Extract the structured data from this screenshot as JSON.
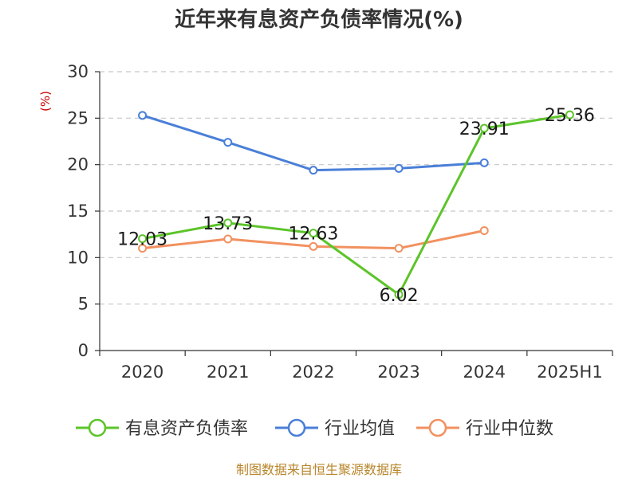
{
  "chart_data": {
    "type": "line",
    "title": "近年来有息资产负债率情况(%)",
    "unit_label": "(%)",
    "categories": [
      "2020",
      "2021",
      "2022",
      "2023",
      "2024",
      "2025H1"
    ],
    "ylim": [
      0,
      30
    ],
    "yticks": [
      0,
      5,
      10,
      15,
      20,
      25,
      30
    ],
    "grid": true,
    "legend_position": "bottom",
    "series": [
      {
        "name": "有息资产负债率",
        "color": "#5cc42a",
        "values": [
          12.03,
          13.73,
          12.63,
          6.02,
          23.91,
          25.36
        ],
        "labels": [
          "12.03",
          "13.73",
          "12.63",
          "6.02",
          "23.91",
          "25.36"
        ]
      },
      {
        "name": "行业均值",
        "color": "#4a7fd8",
        "values": [
          25.3,
          22.4,
          19.4,
          19.6,
          20.2,
          null
        ]
      },
      {
        "name": "行业中位数",
        "color": "#f29160",
        "values": [
          11.0,
          12.0,
          11.2,
          11.0,
          12.9,
          null
        ]
      }
    ]
  },
  "footer": {
    "source": "制图数据来自恒生聚源数据库"
  }
}
